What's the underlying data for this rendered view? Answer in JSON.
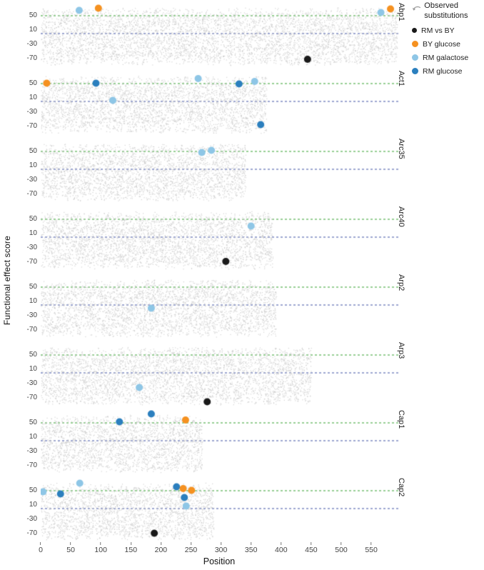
{
  "chart_data": {
    "type": "scatter",
    "title": "",
    "xlabel": "Position",
    "ylabel": "Functional effect score",
    "xlim": [
      0,
      595
    ],
    "ylim": [
      -95,
      85
    ],
    "x_ticks": [
      0,
      50,
      100,
      150,
      200,
      250,
      300,
      350,
      400,
      450,
      500,
      550
    ],
    "y_ticks": [
      50,
      10,
      -30,
      -70
    ],
    "grid": false,
    "legend_position": "top-right",
    "reference_lines": [
      {
        "value": 50,
        "color": "#33a02c",
        "style": "dashed"
      },
      {
        "value": 0,
        "color": "#3f51a3",
        "style": "dashed"
      }
    ],
    "background_scatter": {
      "color": "#c9c9c9",
      "description": "dense gray cloud of functional effect scores for all possible substitutions at every position"
    },
    "categories": {
      "RM vs BY": "#1a1a1a",
      "BY glucose": "#f59120",
      "RM galactose": "#8ec6e6",
      "RM glucose": "#2b7fbe"
    },
    "legend": {
      "title": "Observed substitutions",
      "items": [
        {
          "label": "RM vs BY",
          "color": "#1a1a1a"
        },
        {
          "label": "BY glucose",
          "color": "#f59120"
        },
        {
          "label": "RM galactose",
          "color": "#8ec6e6"
        },
        {
          "label": "RM glucose",
          "color": "#2b7fbe"
        }
      ]
    },
    "panels": [
      {
        "gene": "Abp1",
        "length": 592,
        "highlights": [
          {
            "pos": 64,
            "score": 64,
            "category": "RM galactose"
          },
          {
            "pos": 96,
            "score": 70,
            "category": "BY glucose"
          },
          {
            "pos": 444,
            "score": -73,
            "category": "RM vs BY"
          },
          {
            "pos": 566,
            "score": 58,
            "category": "RM galactose"
          },
          {
            "pos": 582,
            "score": 68,
            "category": "BY glucose"
          }
        ]
      },
      {
        "gene": "Act1",
        "length": 375,
        "highlights": [
          {
            "pos": 10,
            "score": 50,
            "category": "BY glucose"
          },
          {
            "pos": 92,
            "score": 50,
            "category": "RM glucose"
          },
          {
            "pos": 120,
            "score": 2,
            "category": "RM galactose"
          },
          {
            "pos": 262,
            "score": 63,
            "category": "RM galactose"
          },
          {
            "pos": 330,
            "score": 48,
            "category": "RM glucose"
          },
          {
            "pos": 356,
            "score": 55,
            "category": "RM galactose"
          },
          {
            "pos": 366,
            "score": -66,
            "category": "RM glucose"
          }
        ]
      },
      {
        "gene": "Arc35",
        "length": 340,
        "highlights": [
          {
            "pos": 268,
            "score": 46,
            "category": "RM galactose"
          },
          {
            "pos": 284,
            "score": 52,
            "category": "RM galactose"
          }
        ]
      },
      {
        "gene": "Arc40",
        "length": 385,
        "highlights": [
          {
            "pos": 308,
            "score": -69,
            "category": "RM vs BY"
          },
          {
            "pos": 350,
            "score": 30,
            "category": "RM galactose"
          }
        ]
      },
      {
        "gene": "Arp2",
        "length": 391,
        "highlights": [
          {
            "pos": 184,
            "score": -10,
            "category": "RM galactose"
          }
        ]
      },
      {
        "gene": "Arp3",
        "length": 449,
        "highlights": [
          {
            "pos": 164,
            "score": -42,
            "category": "RM galactose"
          },
          {
            "pos": 277,
            "score": -82,
            "category": "RM vs BY"
          }
        ]
      },
      {
        "gene": "Cap1",
        "length": 268,
        "highlights": [
          {
            "pos": 131,
            "score": 52,
            "category": "RM glucose"
          },
          {
            "pos": 184,
            "score": 74,
            "category": "RM glucose"
          },
          {
            "pos": 241,
            "score": 57,
            "category": "BY glucose"
          }
        ]
      },
      {
        "gene": "Cap2",
        "length": 287,
        "highlights": [
          {
            "pos": 4,
            "score": 46,
            "category": "RM galactose"
          },
          {
            "pos": 33,
            "score": 40,
            "category": "RM glucose"
          },
          {
            "pos": 65,
            "score": 70,
            "category": "RM galactose"
          },
          {
            "pos": 189,
            "score": -70,
            "category": "RM vs BY"
          },
          {
            "pos": 226,
            "score": 60,
            "category": "RM glucose"
          },
          {
            "pos": 237,
            "score": 55,
            "category": "BY glucose"
          },
          {
            "pos": 239,
            "score": 30,
            "category": "RM glucose"
          },
          {
            "pos": 242,
            "score": 6,
            "category": "RM galactose"
          },
          {
            "pos": 251,
            "score": 50,
            "category": "BY glucose"
          }
        ]
      }
    ]
  }
}
